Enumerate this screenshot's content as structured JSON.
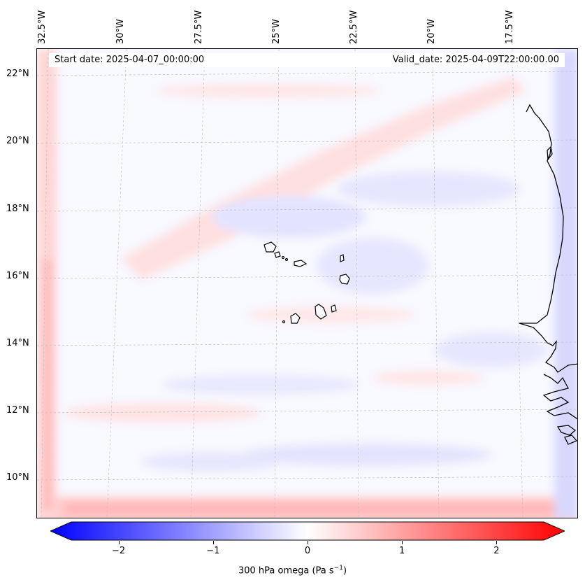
{
  "map": {
    "field": "300 hPa omega",
    "units_html": "Pa s",
    "start_date": "Start date: 2025-04-07_00:00:00",
    "valid_date": "Valid_date: 2025-04-09T22:00:00.00",
    "lat_ticks": [
      "22°N",
      "20°N",
      "18°N",
      "16°N",
      "14°N",
      "12°N",
      "10°N"
    ],
    "lon_ticks": [
      "32.5°W",
      "30°W",
      "27.5°W",
      "25°W",
      "22.5°W",
      "20°W",
      "17.5°W"
    ],
    "colorbar": {
      "ticks": [
        "−2",
        "−1",
        "0",
        "1",
        "2"
      ],
      "tick_values": [
        -2,
        -1,
        0,
        1,
        2
      ],
      "range": [
        -2.5,
        2.5
      ],
      "label_main": "300 hPa omega (Pa s",
      "label_sup": "−1",
      "label_close": ")",
      "colors": {
        "min": "#0000ff",
        "mid": "#ffffff",
        "max": "#ff0000"
      }
    },
    "coastline_color": "#000000",
    "grid_color": "#bbbbbb"
  }
}
